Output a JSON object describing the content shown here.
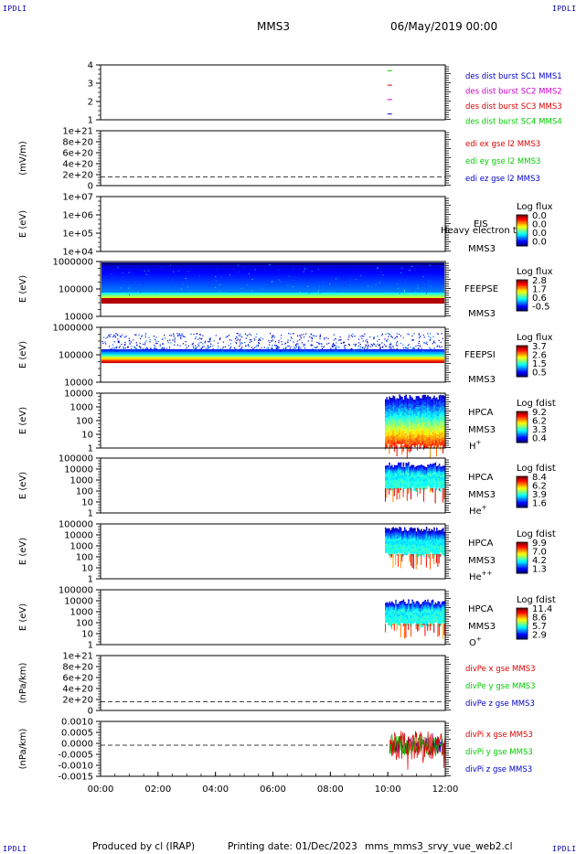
{
  "header": {
    "corner_label": "IPDLI",
    "mission": "MMS3",
    "datetime": "06/May/2019 00:00"
  },
  "footer": {
    "produced_by": "Produced by cl (IRAP)",
    "printing_date": "Printing date: 01/Dec/2023",
    "script_name": "mms_mms3_srvy_vue_web2.cl"
  },
  "colors": {
    "blue": "#0000cc",
    "red": "#dd0000",
    "magenta": "#cc00cc",
    "green": "#00cc00",
    "frame": "#000000"
  },
  "chart_data": [
    {
      "type": "scatter",
      "id": "burst",
      "ylabel": "",
      "yticks": [
        "4",
        "3",
        "2",
        "1"
      ],
      "ylim": [
        0.6,
        4.4
      ],
      "x": [
        10.05
      ],
      "series": [
        {
          "name": "des dist burst SC1 MMS1",
          "color": "#0000cc",
          "y": 1
        },
        {
          "name": "des dist burst SC2 MMS2",
          "color": "#cc00cc",
          "y": 2
        },
        {
          "name": "des dist burst SC3 MMS3",
          "color": "#dd0000",
          "y": 3
        },
        {
          "name": "des dist burst SC4 MMS4",
          "color": "#00cc00",
          "y": 4
        }
      ]
    },
    {
      "type": "line",
      "id": "edi",
      "ylabel": "(mV/m)",
      "yticks": [
        "1e+21",
        "8e+20",
        "6e+20",
        "4e+20",
        "2e+20",
        "0"
      ],
      "ylim": [
        -2e+20,
        1.05e+21
      ],
      "zero_line": true,
      "series": [
        {
          "name": "edi ex gse l2 MMS3",
          "color": "#dd0000"
        },
        {
          "name": "edi ey gse l2 MMS3",
          "color": "#00cc00"
        },
        {
          "name": "edi ez gse l2 MMS3",
          "color": "#0000cc"
        }
      ]
    },
    {
      "type": "heatmap",
      "id": "eis",
      "ylabel": "E (eV)",
      "yticks": [
        "1e+07",
        "1e+06",
        "1e+05",
        "1e+04"
      ],
      "instrument": "EIS",
      "spacecraft": "MMS3",
      "overlay_text": "Heavy electron to",
      "colorbar": {
        "title": "Log flux",
        "labels": [
          "0.0",
          "0.0",
          "0.0",
          "0.0"
        ]
      },
      "data_start_hour": null
    },
    {
      "type": "heatmap",
      "id": "feepse",
      "ylabel": "E (eV)",
      "yticks": [
        "1000000",
        "100000",
        "10000"
      ],
      "instrument": "FEEPSE",
      "spacecraft": "MMS3",
      "colorbar": {
        "title": "Log flux",
        "labels": [
          "2.8",
          "1.7",
          "0.6",
          "-0.5"
        ]
      },
      "data_start_hour": 0
    },
    {
      "type": "heatmap",
      "id": "feepsi",
      "ylabel": "E (eV)",
      "yticks": [
        "1000000",
        "100000",
        "10000"
      ],
      "instrument": "FEEPSI",
      "spacecraft": "MMS3",
      "colorbar": {
        "title": "Log flux",
        "labels": [
          "3.7",
          "2.6",
          "1.5",
          "0.5"
        ]
      },
      "data_start_hour": 0
    },
    {
      "type": "heatmap",
      "id": "hpca_h",
      "ylabel": "E (eV)",
      "yticks": [
        "10000",
        "1000",
        "100",
        "10",
        "1"
      ],
      "instrument": "HPCA",
      "spacecraft": "MMS3",
      "species": "H",
      "species_sup": "+",
      "colorbar": {
        "title": "Log fdist",
        "labels": [
          "9.2",
          "6.2",
          "3.3",
          "0.4"
        ]
      },
      "data_start_hour": 9.9
    },
    {
      "type": "heatmap",
      "id": "hpca_he",
      "ylabel": "E (eV)",
      "yticks": [
        "100000",
        "10000",
        "1000",
        "100",
        "10",
        "1"
      ],
      "instrument": "HPCA",
      "spacecraft": "MMS3",
      "species": "He",
      "species_sup": "+",
      "colorbar": {
        "title": "Log fdist",
        "labels": [
          "8.4",
          "6.2",
          "3.9",
          "1.6"
        ]
      },
      "data_start_hour": 9.9
    },
    {
      "type": "heatmap",
      "id": "hpca_hepp",
      "ylabel": "E (eV)",
      "yticks": [
        "100000",
        "10000",
        "1000",
        "100",
        "10",
        "1"
      ],
      "instrument": "HPCA",
      "spacecraft": "MMS3",
      "species": "He",
      "species_sup": "++",
      "colorbar": {
        "title": "Log fdist",
        "labels": [
          "9.9",
          "7.0",
          "4.2",
          "1.3"
        ]
      },
      "data_start_hour": 9.9
    },
    {
      "type": "heatmap",
      "id": "hpca_o",
      "ylabel": "E (eV)",
      "yticks": [
        "100000",
        "10000",
        "1000",
        "100",
        "10",
        "1"
      ],
      "instrument": "HPCA",
      "spacecraft": "MMS3",
      "species": "O",
      "species_sup": "+",
      "colorbar": {
        "title": "Log fdist",
        "labels": [
          "11.4",
          "8.6",
          "5.7",
          "2.9"
        ]
      },
      "data_start_hour": 9.9
    },
    {
      "type": "line",
      "id": "divpe",
      "ylabel": "(nPa/km)",
      "yticks": [
        "1e+21",
        "8e+20",
        "6e+20",
        "4e+20",
        "2e+20",
        "0"
      ],
      "ylim": [
        -2e+20,
        1.05e+21
      ],
      "zero_line": true,
      "series": [
        {
          "name": "divPe x gse MMS3",
          "color": "#dd0000"
        },
        {
          "name": "divPe y gse MMS3",
          "color": "#00cc00"
        },
        {
          "name": "divPe z gse MMS3",
          "color": "#0000cc"
        }
      ]
    },
    {
      "type": "line",
      "id": "divpi",
      "ylabel": "(nPa/km)",
      "yticks": [
        "0.0010",
        "0.0005",
        "0.0000",
        "-0.0005",
        "-0.0010",
        "-0.0015"
      ],
      "ylim": [
        -0.0017,
        0.0013
      ],
      "zero_line": true,
      "data_start_hour": 10.0,
      "series": [
        {
          "name": "divPi x gse MMS3",
          "color": "#dd0000"
        },
        {
          "name": "divPi y gse MMS3",
          "color": "#00cc00"
        },
        {
          "name": "divPi z gse MMS3",
          "color": "#0000cc"
        }
      ]
    }
  ],
  "x_axis": {
    "type": "time",
    "range_hours": [
      0,
      12
    ],
    "tick_labels": [
      "00:00",
      "02:00",
      "04:00",
      "06:00",
      "08:00",
      "10:00",
      "12:00"
    ]
  }
}
